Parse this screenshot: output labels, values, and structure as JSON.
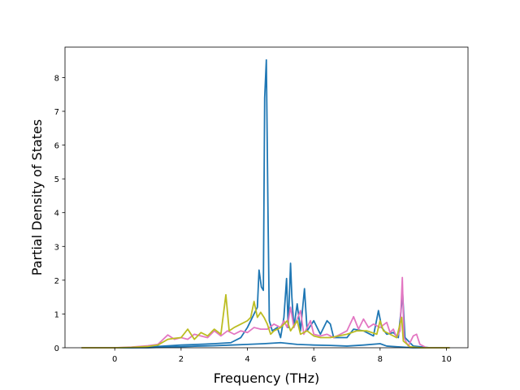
{
  "chart_data": {
    "type": "line",
    "xlabel": "Frequency (THz)",
    "ylabel": "Partial Density of States",
    "xlim": [
      -1.5,
      10.65
    ],
    "ylim": [
      0,
      8.9
    ],
    "xticks": [
      0,
      2,
      4,
      6,
      8,
      10
    ],
    "yticks": [
      0,
      1,
      2,
      3,
      4,
      5,
      6,
      7,
      8
    ],
    "grid": false,
    "legend": "none",
    "series": [
      {
        "color": "#1f77b4",
        "points": [
          [
            -1,
            0
          ],
          [
            0,
            0
          ],
          [
            0.5,
            0
          ],
          [
            1,
            0.02
          ],
          [
            1.5,
            0.05
          ],
          [
            2,
            0.08
          ],
          [
            2.5,
            0.1
          ],
          [
            3,
            0.12
          ],
          [
            3.5,
            0.15
          ],
          [
            3.8,
            0.3
          ],
          [
            4,
            0.6
          ],
          [
            4.15,
            0.9
          ],
          [
            4.3,
            1.2
          ],
          [
            4.35,
            2.3
          ],
          [
            4.42,
            1.8
          ],
          [
            4.48,
            1.7
          ],
          [
            4.52,
            7.4
          ],
          [
            4.57,
            8.52
          ],
          [
            4.62,
            4.0
          ],
          [
            4.66,
            0.8
          ],
          [
            4.75,
            0.5
          ],
          [
            4.9,
            0.6
          ],
          [
            5.0,
            0.3
          ],
          [
            5.1,
            0.9
          ],
          [
            5.18,
            2.05
          ],
          [
            5.23,
            0.6
          ],
          [
            5.3,
            2.5
          ],
          [
            5.34,
            1.5
          ],
          [
            5.4,
            0.6
          ],
          [
            5.5,
            1.3
          ],
          [
            5.6,
            0.5
          ],
          [
            5.72,
            1.75
          ],
          [
            5.8,
            0.5
          ],
          [
            6.0,
            0.8
          ],
          [
            6.2,
            0.4
          ],
          [
            6.4,
            0.8
          ],
          [
            6.5,
            0.7
          ],
          [
            6.6,
            0.3
          ],
          [
            7.0,
            0.3
          ],
          [
            7.2,
            0.55
          ],
          [
            7.5,
            0.5
          ],
          [
            7.8,
            0.35
          ],
          [
            7.95,
            1.1
          ],
          [
            8.05,
            0.6
          ],
          [
            8.2,
            0.4
          ],
          [
            8.4,
            0.45
          ],
          [
            8.55,
            0.3
          ],
          [
            8.68,
            1.6
          ],
          [
            8.75,
            0.3
          ],
          [
            9.0,
            0.05
          ],
          [
            9.5,
            0
          ],
          [
            10,
            0
          ],
          [
            10.1,
            0
          ]
        ]
      },
      {
        "color": "#1f77b4",
        "points": [
          [
            -1,
            0
          ],
          [
            1,
            0
          ],
          [
            1.5,
            0.02
          ],
          [
            2,
            0.03
          ],
          [
            2.5,
            0.05
          ],
          [
            3,
            0.06
          ],
          [
            3.5,
            0.08
          ],
          [
            4,
            0.1
          ],
          [
            4.5,
            0.12
          ],
          [
            5,
            0.15
          ],
          [
            5.5,
            0.1
          ],
          [
            6,
            0.08
          ],
          [
            6.5,
            0.07
          ],
          [
            7,
            0.05
          ],
          [
            7.5,
            0.08
          ],
          [
            8,
            0.12
          ],
          [
            8.2,
            0.05
          ],
          [
            8.5,
            0.03
          ],
          [
            9,
            0
          ],
          [
            10.1,
            0
          ]
        ]
      },
      {
        "color": "#e377c2",
        "points": [
          [
            -1,
            0
          ],
          [
            0,
            0
          ],
          [
            0.5,
            0.02
          ],
          [
            1,
            0.06
          ],
          [
            1.3,
            0.1
          ],
          [
            1.6,
            0.38
          ],
          [
            1.8,
            0.25
          ],
          [
            2.0,
            0.3
          ],
          [
            2.2,
            0.25
          ],
          [
            2.4,
            0.4
          ],
          [
            2.6,
            0.35
          ],
          [
            2.8,
            0.3
          ],
          [
            3.0,
            0.5
          ],
          [
            3.2,
            0.35
          ],
          [
            3.4,
            0.5
          ],
          [
            3.6,
            0.4
          ],
          [
            3.8,
            0.5
          ],
          [
            4.0,
            0.45
          ],
          [
            4.2,
            0.6
          ],
          [
            4.4,
            0.55
          ],
          [
            4.6,
            0.55
          ],
          [
            4.8,
            0.7
          ],
          [
            5.0,
            0.6
          ],
          [
            5.1,
            0.8
          ],
          [
            5.2,
            0.6
          ],
          [
            5.3,
            1.2
          ],
          [
            5.4,
            0.6
          ],
          [
            5.6,
            1.1
          ],
          [
            5.7,
            0.4
          ],
          [
            5.9,
            0.8
          ],
          [
            6.0,
            0.4
          ],
          [
            6.2,
            0.35
          ],
          [
            6.4,
            0.4
          ],
          [
            6.6,
            0.3
          ],
          [
            6.8,
            0.4
          ],
          [
            7.0,
            0.5
          ],
          [
            7.2,
            0.92
          ],
          [
            7.35,
            0.55
          ],
          [
            7.5,
            0.85
          ],
          [
            7.65,
            0.6
          ],
          [
            7.8,
            0.7
          ],
          [
            8.0,
            0.6
          ],
          [
            8.2,
            0.75
          ],
          [
            8.3,
            0.45
          ],
          [
            8.4,
            0.55
          ],
          [
            8.5,
            0.3
          ],
          [
            8.6,
            0.5
          ],
          [
            8.67,
            2.08
          ],
          [
            8.72,
            0.3
          ],
          [
            8.85,
            0.05
          ],
          [
            9.0,
            0.35
          ],
          [
            9.1,
            0.4
          ],
          [
            9.2,
            0.1
          ],
          [
            9.4,
            0
          ],
          [
            10.1,
            0
          ]
        ]
      },
      {
        "color": "#bcbd22",
        "points": [
          [
            -1,
            0
          ],
          [
            0,
            0
          ],
          [
            0.5,
            0.01
          ],
          [
            1,
            0.04
          ],
          [
            1.3,
            0.08
          ],
          [
            1.6,
            0.25
          ],
          [
            1.8,
            0.28
          ],
          [
            2.0,
            0.3
          ],
          [
            2.2,
            0.55
          ],
          [
            2.4,
            0.25
          ],
          [
            2.6,
            0.45
          ],
          [
            2.8,
            0.35
          ],
          [
            3.0,
            0.55
          ],
          [
            3.2,
            0.4
          ],
          [
            3.35,
            1.57
          ],
          [
            3.45,
            0.5
          ],
          [
            3.6,
            0.6
          ],
          [
            3.8,
            0.7
          ],
          [
            4.0,
            0.8
          ],
          [
            4.1,
            0.9
          ],
          [
            4.2,
            1.37
          ],
          [
            4.3,
            0.9
          ],
          [
            4.4,
            1.05
          ],
          [
            4.5,
            0.9
          ],
          [
            4.6,
            0.7
          ],
          [
            4.7,
            0.4
          ],
          [
            4.8,
            0.5
          ],
          [
            5.0,
            0.6
          ],
          [
            5.2,
            0.8
          ],
          [
            5.3,
            0.5
          ],
          [
            5.5,
            0.8
          ],
          [
            5.6,
            0.4
          ],
          [
            5.8,
            0.5
          ],
          [
            6.0,
            0.35
          ],
          [
            6.2,
            0.3
          ],
          [
            6.5,
            0.3
          ],
          [
            7.0,
            0.4
          ],
          [
            7.3,
            0.5
          ],
          [
            7.6,
            0.5
          ],
          [
            7.9,
            0.4
          ],
          [
            8.0,
            0.8
          ],
          [
            8.1,
            0.5
          ],
          [
            8.3,
            0.4
          ],
          [
            8.5,
            0.3
          ],
          [
            8.65,
            0.9
          ],
          [
            8.7,
            0.2
          ],
          [
            8.9,
            0.03
          ],
          [
            9.2,
            0
          ],
          [
            10.1,
            0
          ]
        ]
      }
    ]
  }
}
